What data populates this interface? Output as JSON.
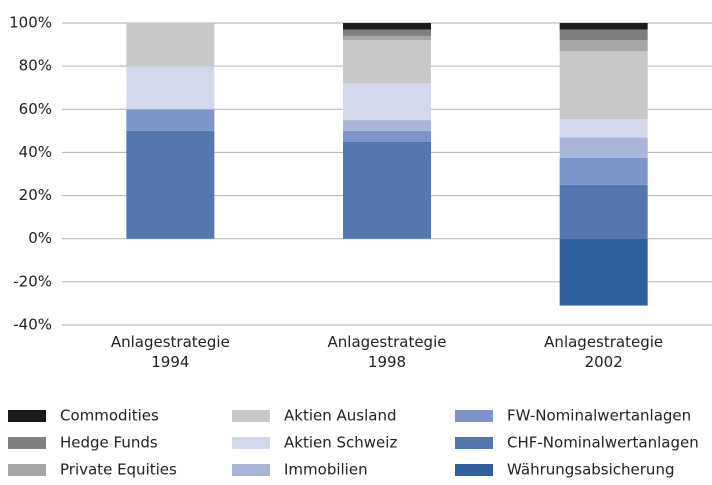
{
  "chart_data": {
    "type": "stacked_bar",
    "categories": [
      "Anlagestrategie 1994",
      "Anlagestrategie 1998",
      "Anlagestrategie 2002"
    ],
    "series": [
      {
        "name": "Commodities",
        "color": "#1a1a1a",
        "values": [
          0,
          3,
          3
        ]
      },
      {
        "name": "Hedge Funds",
        "color": "#7f7f7f",
        "values": [
          0,
          3,
          5
        ]
      },
      {
        "name": "Private Equities",
        "color": "#a6a6a6",
        "values": [
          0,
          2,
          5
        ]
      },
      {
        "name": "Aktien Ausland",
        "color": "#c8c8c8",
        "values": [
          20,
          20,
          31.5
        ]
      },
      {
        "name": "Aktien Schweiz",
        "color": "#d3d8ec",
        "values": [
          20,
          17,
          8.5
        ]
      },
      {
        "name": "Immobilien",
        "color": "#a9b6da",
        "values": [
          0,
          5,
          9.5
        ]
      },
      {
        "name": "FW-Nominalwertanlagen",
        "color": "#7d95c8",
        "values": [
          10,
          5,
          12.5
        ]
      },
      {
        "name": "CHF-Nominalwertanlagen",
        "color": "#5577b0",
        "values": [
          50,
          45,
          25
        ]
      },
      {
        "name": "Währungsabsicherung",
        "color": "#2f5f9e",
        "values": [
          0,
          0,
          -31
        ]
      }
    ],
    "ylim": [
      -40,
      100
    ],
    "yticks": [
      {
        "value": -40,
        "label": "-40%"
      },
      {
        "value": -20,
        "label": "-20%"
      },
      {
        "value": 0,
        "label": "0%"
      },
      {
        "value": 20,
        "label": "20%"
      },
      {
        "value": 40,
        "label": "40%"
      },
      {
        "value": 60,
        "label": "60%"
      },
      {
        "value": 80,
        "label": "80%"
      },
      {
        "value": 100,
        "label": "100%"
      }
    ],
    "grid": true,
    "legend": "bottom"
  }
}
